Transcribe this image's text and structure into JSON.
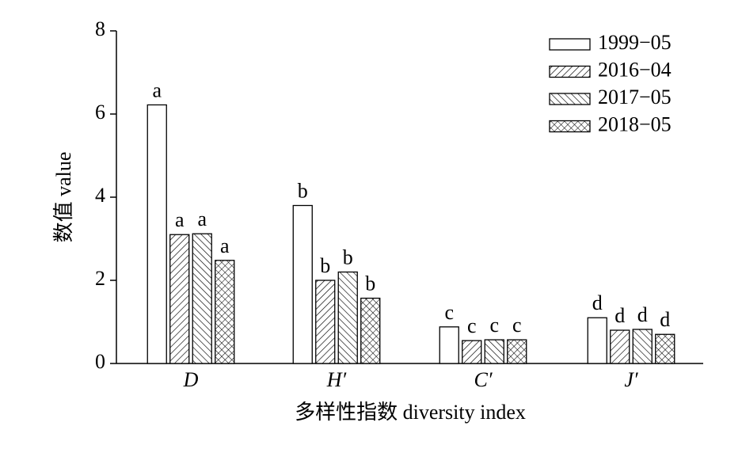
{
  "chart_data": {
    "type": "bar",
    "xlabel": "多样性指数 diversity index",
    "ylabel": "数值 value",
    "categories": [
      "D",
      "H′",
      "C′",
      "J′"
    ],
    "ylim": [
      0,
      8
    ],
    "yticks": [
      0,
      2,
      4,
      6,
      8
    ],
    "legend_position": "upper right",
    "series": [
      {
        "name": "1999−05",
        "color": "#000000",
        "pattern": "none",
        "values": [
          6.22,
          3.8,
          0.88,
          1.1
        ],
        "significance_labels": [
          "a",
          "b",
          "c",
          "d"
        ]
      },
      {
        "name": "2016−04",
        "color": "#000000",
        "pattern": "forward",
        "values": [
          3.1,
          2.0,
          0.55,
          0.8
        ],
        "significance_labels": [
          "a",
          "b",
          "c",
          "d"
        ]
      },
      {
        "name": "2017−05",
        "color": "#000000",
        "pattern": "backward",
        "values": [
          3.12,
          2.2,
          0.57,
          0.82
        ],
        "significance_labels": [
          "a",
          "b",
          "c",
          "d"
        ]
      },
      {
        "name": "2018−05",
        "color": "#000000",
        "pattern": "cross",
        "values": [
          2.48,
          1.57,
          0.57,
          0.7
        ],
        "significance_labels": [
          "a",
          "b",
          "c",
          "d"
        ]
      }
    ]
  }
}
